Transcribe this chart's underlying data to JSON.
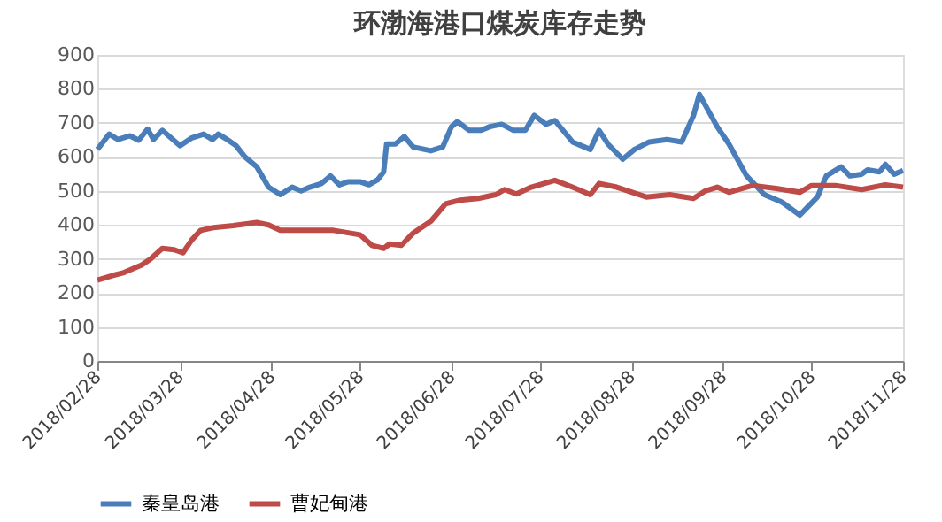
{
  "chart_data": {
    "type": "line",
    "title": "环渤海港口煤炭库存走势",
    "grid": "y",
    "legend": "bottom",
    "marker": "none",
    "line_style": "solid",
    "xlim": [
      "2018-02-28",
      "2018-11-28"
    ],
    "xticks": [
      {
        "value": "2018-02-28",
        "label": "2018/02/28"
      },
      {
        "value": "2018-03-28",
        "label": "2018/03/28"
      },
      {
        "value": "2018-04-28",
        "label": "2018/04/28"
      },
      {
        "value": "2018-05-28",
        "label": "2018/05/28"
      },
      {
        "value": "2018-06-28",
        "label": "2018/06/28"
      },
      {
        "value": "2018-07-28",
        "label": "2018/07/28"
      },
      {
        "value": "2018-08-28",
        "label": "2018/08/28"
      },
      {
        "value": "2018-09-28",
        "label": "2018/09/28"
      },
      {
        "value": "2018-10-28",
        "label": "2018/10/28"
      },
      {
        "value": "2018-11-28",
        "label": "2018/11/28"
      }
    ],
    "ylim": [
      0,
      900
    ],
    "yticks": [
      0,
      100,
      200,
      300,
      400,
      500,
      600,
      700,
      800,
      900
    ],
    "series": [
      {
        "name": "秦皇岛港",
        "color": "#4a7ebb",
        "x": [
          "2018-02-28",
          "2018-03-04",
          "2018-03-07",
          "2018-03-11",
          "2018-03-14",
          "2018-03-17",
          "2018-03-19",
          "2018-03-22",
          "2018-03-28",
          "2018-04-01",
          "2018-04-05",
          "2018-04-08",
          "2018-04-10",
          "2018-04-13",
          "2018-04-16",
          "2018-04-19",
          "2018-04-23",
          "2018-04-27",
          "2018-05-01",
          "2018-05-05",
          "2018-05-08",
          "2018-05-11",
          "2018-05-15",
          "2018-05-18",
          "2018-05-21",
          "2018-05-24",
          "2018-05-28",
          "2018-05-31",
          "2018-06-03",
          "2018-06-05",
          "2018-06-06",
          "2018-06-09",
          "2018-06-12",
          "2018-06-15",
          "2018-06-21",
          "2018-06-25",
          "2018-06-28",
          "2018-06-30",
          "2018-07-04",
          "2018-07-08",
          "2018-07-11",
          "2018-07-15",
          "2018-07-19",
          "2018-07-23",
          "2018-07-26",
          "2018-07-30",
          "2018-08-02",
          "2018-08-08",
          "2018-08-14",
          "2018-08-17",
          "2018-08-20",
          "2018-08-25",
          "2018-08-29",
          "2018-09-03",
          "2018-09-09",
          "2018-09-14",
          "2018-09-18",
          "2018-09-20",
          "2018-09-26",
          "2018-09-30",
          "2018-10-06",
          "2018-10-12",
          "2018-10-18",
          "2018-10-24",
          "2018-10-30",
          "2018-11-02",
          "2018-11-07",
          "2018-11-10",
          "2018-11-14",
          "2018-11-16",
          "2018-11-20",
          "2018-11-22",
          "2018-11-25",
          "2018-11-28"
        ],
        "values": [
          622,
          667,
          651,
          662,
          649,
          682,
          651,
          678,
          633,
          656,
          667,
          651,
          667,
          651,
          633,
          600,
          571,
          511,
          489,
          511,
          500,
          511,
          522,
          544,
          518,
          527,
          527,
          518,
          533,
          556,
          638,
          638,
          660,
          629,
          618,
          629,
          689,
          704,
          678,
          678,
          689,
          696,
          678,
          678,
          722,
          696,
          707,
          644,
          622,
          678,
          638,
          593,
          622,
          644,
          651,
          644,
          722,
          784,
          689,
          638,
          544,
          489,
          467,
          429,
          482,
          544,
          571,
          544,
          549,
          562,
          556,
          578,
          549,
          560
        ]
      },
      {
        "name": "曹妃甸港",
        "color": "#be4b48",
        "x": [
          "2018-02-28",
          "2018-03-05",
          "2018-03-09",
          "2018-03-15",
          "2018-03-18",
          "2018-03-22",
          "2018-03-26",
          "2018-03-29",
          "2018-04-01",
          "2018-04-04",
          "2018-04-09",
          "2018-04-15",
          "2018-04-23",
          "2018-04-27",
          "2018-05-01",
          "2018-05-11",
          "2018-05-19",
          "2018-05-28",
          "2018-06-01",
          "2018-06-05",
          "2018-06-07",
          "2018-06-11",
          "2018-06-15",
          "2018-06-21",
          "2018-06-26",
          "2018-07-01",
          "2018-07-07",
          "2018-07-13",
          "2018-07-16",
          "2018-07-20",
          "2018-07-25",
          "2018-08-02",
          "2018-08-08",
          "2018-08-14",
          "2018-08-17",
          "2018-08-23",
          "2018-09-02",
          "2018-09-10",
          "2018-09-18",
          "2018-09-22",
          "2018-09-26",
          "2018-09-30",
          "2018-10-08",
          "2018-10-16",
          "2018-10-24",
          "2018-10-28",
          "2018-11-05",
          "2018-11-14",
          "2018-11-22",
          "2018-11-28"
        ],
        "values": [
          238,
          251,
          260,
          282,
          300,
          331,
          327,
          318,
          356,
          384,
          393,
          398,
          407,
          400,
          384,
          384,
          384,
          371,
          340,
          331,
          344,
          340,
          376,
          411,
          462,
          473,
          478,
          489,
          504,
          491,
          511,
          531,
          511,
          489,
          522,
          511,
          482,
          489,
          478,
          500,
          511,
          496,
          516,
          507,
          496,
          516,
          516,
          504,
          518,
          511
        ]
      }
    ]
  }
}
